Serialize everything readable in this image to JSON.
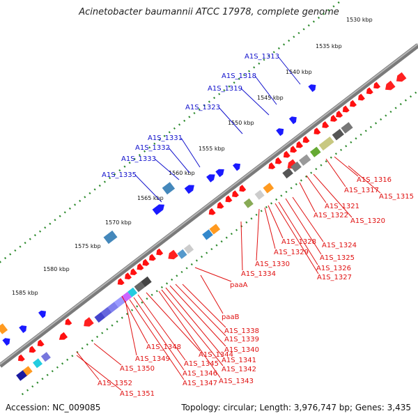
{
  "title": "Acinetobacter baumannii ATCC 17978, complete genome",
  "footer": {
    "accession": "Accession: NC_009085",
    "topology": "Topology: circular; Length: 3,976,747 bp; Genes: 3,435"
  },
  "colors": {
    "forward_label": "#1010cc",
    "reverse_label": "#e01010",
    "scale": "#2d8a2d",
    "backbone": "#808080"
  },
  "scale_ticks": [
    "1530 kbp",
    "1535 kbp",
    "1540 kbp",
    "1545 kbp",
    "1550 kbp",
    "1555 kbp",
    "1560 kbp",
    "1565 kbp",
    "1570 kbp",
    "1575 kbp",
    "1580 kbp",
    "1585 kbp"
  ],
  "forward_genes": [
    "A1S_1313",
    "A1S_1318",
    "A1S_1319",
    "A1S_1323",
    "A1S_1331",
    "A1S_1332",
    "A1S_1333",
    "A1S_1335"
  ],
  "reverse_genes": [
    "A1S_1315",
    "A1S_1316",
    "A1S_1317",
    "A1S_1320",
    "A1S_1321",
    "A1S_1322",
    "A1S_1324",
    "A1S_1325",
    "A1S_1326",
    "A1S_1327",
    "A1S_1328",
    "A1S_1329",
    "A1S_1330",
    "A1S_1334",
    "paaA",
    "paaB",
    "A1S_1338",
    "A1S_1339",
    "A1S_1340",
    "A1S_1341",
    "A1S_1342",
    "A1S_1343",
    "A1S_1344",
    "A1S_1345",
    "A1S_1346",
    "A1S_1347",
    "A1S_1348",
    "A1S_1349",
    "A1S_1350",
    "A1S_1351",
    "A1S_1352"
  ]
}
